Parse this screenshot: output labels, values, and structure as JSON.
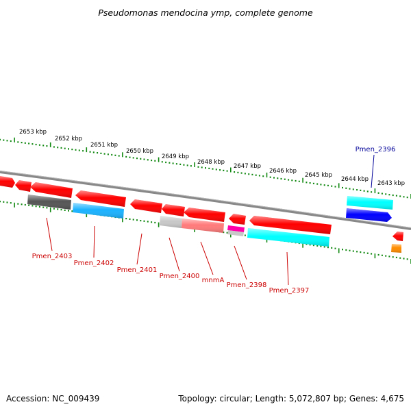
{
  "title": "Pseudomonas mendocina ymp, complete genome",
  "footer": {
    "accession": "Accession: NC_009439",
    "summary": "Topology: circular; Length: 5,072,807 bp; Genes: 4,675"
  },
  "kbp_labels": [
    "2653 kbp",
    "2652 kbp",
    "2651 kbp",
    "2650 kbp",
    "2649 kbp",
    "2648 kbp",
    "2647 kbp",
    "2646 kbp",
    "2645 kbp",
    "2644 kbp",
    "2643 kbp"
  ],
  "gene_labels": [
    "Pmen_2403",
    "Pmen_2402",
    "Pmen_2401",
    "Pmen_2400",
    "mnmA",
    "Pmen_2398",
    "Pmen_2397",
    "Pmen_2396"
  ],
  "colors": {
    "red": "#ff0000",
    "cyan": "#00ffff",
    "blue": "#0000ff",
    "sky": "#1ab2ff",
    "dark_gray": "#555555",
    "light_gray": "#c8c8c8",
    "salmon": "#ff7a7a",
    "magenta": "#ff00aa",
    "orange": "#ff8c00",
    "tick_green": "#118811",
    "backbone": "#777777",
    "label_red": "#cc0000",
    "label_blue": "#000099"
  }
}
